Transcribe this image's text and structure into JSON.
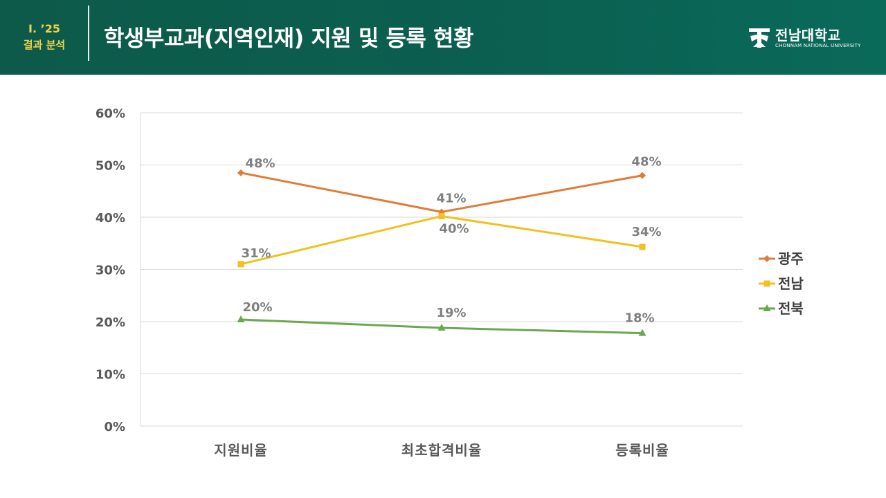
{
  "header": {
    "section_number": "Ⅰ. ’25",
    "section_label": "결과 분석",
    "title": "학생부교과(지역인재) 지원 및 등록 현황",
    "logo_kr": "전남대학교",
    "logo_en": "CHONNAM NATIONAL UNIVERSITY"
  },
  "colors": {
    "header_bg": "#0b5f50",
    "accent_yellow": "#f0d34a",
    "series_gwangju": "#e07b39",
    "series_jeonnam": "#f2c01f",
    "series_jeonbuk": "#6aa84f"
  },
  "chart_data": {
    "type": "line",
    "title": "",
    "xlabel": "",
    "ylabel": "",
    "categories": [
      "지원비율",
      "최초합격비율",
      "등록비율"
    ],
    "ylim": [
      0,
      60
    ],
    "yticks": [
      "0%",
      "10%",
      "20%",
      "30%",
      "40%",
      "50%",
      "60%"
    ],
    "grid": true,
    "legend_position": "right",
    "series": [
      {
        "name": "광주",
        "values": [
          48.5,
          41,
          48
        ],
        "labels": [
          "48%",
          "41%",
          "48%"
        ],
        "marker": "diamond",
        "color": "#e07b39"
      },
      {
        "name": "전남",
        "values": [
          31,
          40.2,
          34.3
        ],
        "labels": [
          "31%",
          "40%",
          "34%"
        ],
        "marker": "square",
        "color": "#f2c01f"
      },
      {
        "name": "전북",
        "values": [
          20.4,
          18.8,
          17.8
        ],
        "labels": [
          "20%",
          "19%",
          "18%"
        ],
        "marker": "triangle",
        "color": "#6aa84f"
      }
    ]
  }
}
